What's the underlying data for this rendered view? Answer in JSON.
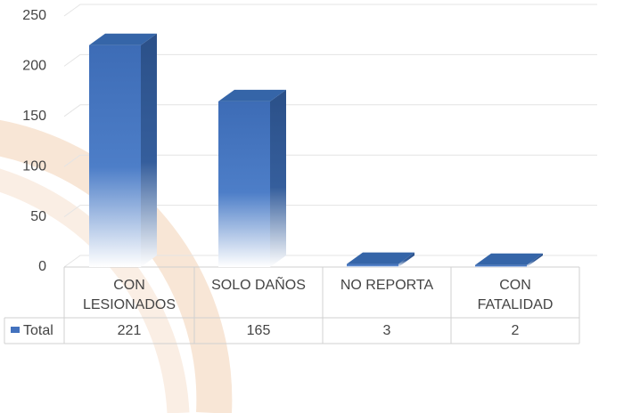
{
  "chart_data": {
    "type": "bar3d",
    "categories": [
      "CON LESIONADOS",
      "SOLO DAÑOS",
      "NO REPORTA",
      "CON FATALIDAD"
    ],
    "series": [
      {
        "name": "Total",
        "color": "#4372be",
        "values": [
          221,
          165,
          3,
          2
        ]
      }
    ],
    "ylim": [
      0,
      250
    ],
    "yticks": [
      0,
      50,
      100,
      150,
      200,
      250
    ],
    "grid": true
  }
}
